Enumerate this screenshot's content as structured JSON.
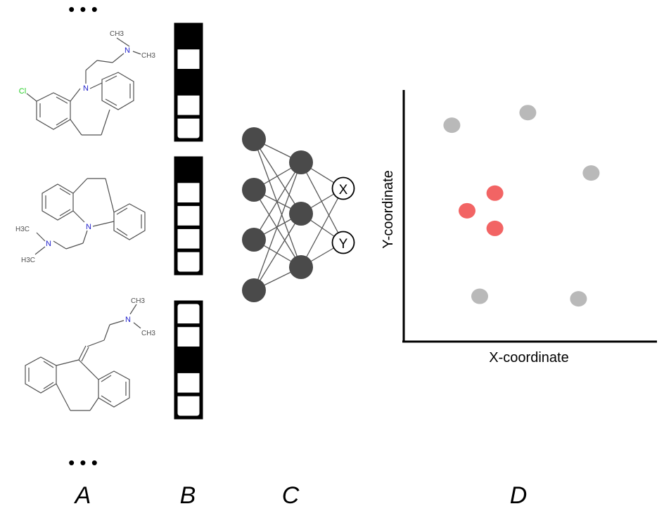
{
  "panels": {
    "a": {
      "label": "A",
      "ellipsis": "• • •"
    },
    "b": {
      "label": "B"
    },
    "c": {
      "label": "C"
    },
    "d": {
      "label": "D"
    }
  },
  "molecules": [
    {
      "atoms": {
        "n_top": "N",
        "ch3_top": "CH3",
        "ch3_side": "CH3",
        "n_ring": "N",
        "cl": "Cl"
      }
    },
    {
      "atoms": {
        "n_ring": "N",
        "n_chain": "N",
        "h3c_top": "H3C",
        "h3c_bottom": "H3C"
      }
    },
    {
      "atoms": {
        "n_top": "N",
        "ch3_top": "CH3",
        "ch3_side": "CH3"
      }
    }
  ],
  "fingerprints": [
    {
      "bits": [
        1,
        0,
        1,
        0,
        0
      ]
    },
    {
      "bits": [
        1,
        0,
        0,
        0,
        0
      ]
    },
    {
      "bits": [
        0,
        0,
        1,
        0,
        0
      ]
    }
  ],
  "network": {
    "output_x": "X",
    "output_y": "Y"
  },
  "chart_data": {
    "type": "scatter",
    "xlabel": "X-coordinate",
    "ylabel": "Y-coordinate",
    "xlim": [
      0,
      100
    ],
    "ylim": [
      0,
      100
    ],
    "series": [
      {
        "color": "#b9b9b9",
        "x": [
          19,
          49,
          74,
          30,
          69
        ],
        "y": [
          86,
          91,
          67,
          18,
          17
        ]
      },
      {
        "color": "#f26464",
        "x": [
          25,
          36,
          36
        ],
        "y": [
          52,
          59,
          45
        ]
      }
    ]
  },
  "colors": {
    "bond": "#505050",
    "nitrogen": "#2222cc",
    "chlorine": "#22cc22",
    "node": "#4a4a4a",
    "gray_point": "#b9b9b9",
    "red_point": "#f26464"
  }
}
